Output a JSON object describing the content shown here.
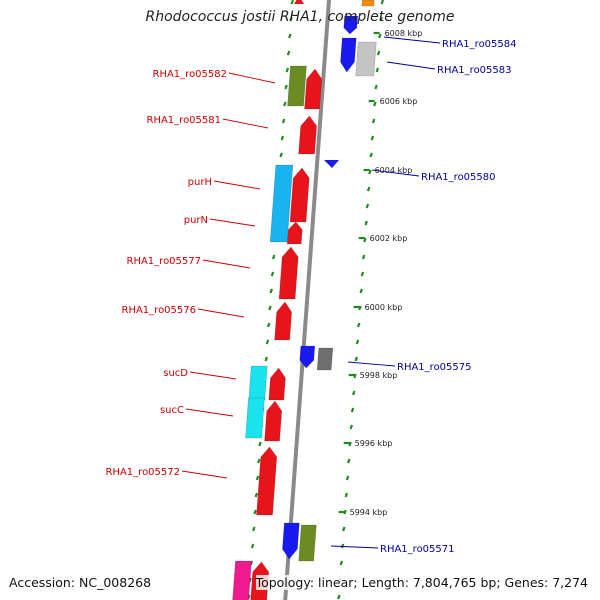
{
  "title": "Rhodococcus jostii RHA1, complete genome",
  "footer": {
    "accession": "Accession: NC_008268",
    "summary": "Topology: linear; Length: 7,804,765 bp; Genes: 7,274"
  },
  "colors": {
    "forward_gene": "#e8141b",
    "reverse_gene": "#1a1aee",
    "left_label": "#cc0000",
    "right_label": "#000099",
    "tick": "#1f8a1f",
    "backbone": "#8a8a8a"
  },
  "kbp_ticks": [
    "5994 kbp",
    "5996 kbp",
    "5998 kbp",
    "6000 kbp",
    "6002 kbp",
    "6004 kbp",
    "6006 kbp",
    "6008 kbp"
  ],
  "left_labels": [
    {
      "id": "ro05582",
      "text": "RHA1_ro05582"
    },
    {
      "id": "ro05581",
      "text": "RHA1_ro05581"
    },
    {
      "id": "purH",
      "text": "purH"
    },
    {
      "id": "purN",
      "text": "purN"
    },
    {
      "id": "ro05577",
      "text": "RHA1_ro05577"
    },
    {
      "id": "ro05576",
      "text": "RHA1_ro05576"
    },
    {
      "id": "sucD",
      "text": "sucD"
    },
    {
      "id": "sucC",
      "text": "sucC"
    },
    {
      "id": "ro05572",
      "text": "RHA1_ro05572"
    }
  ],
  "right_labels": [
    {
      "id": "ro05584",
      "text": "RHA1_ro05584"
    },
    {
      "id": "ro05583",
      "text": "RHA1_ro05583"
    },
    {
      "id": "ro05580",
      "text": "RHA1_ro05580"
    },
    {
      "id": "ro05575",
      "text": "RHA1_ro05575"
    },
    {
      "id": "ro05571",
      "text": "RHA1_ro05571"
    }
  ]
}
